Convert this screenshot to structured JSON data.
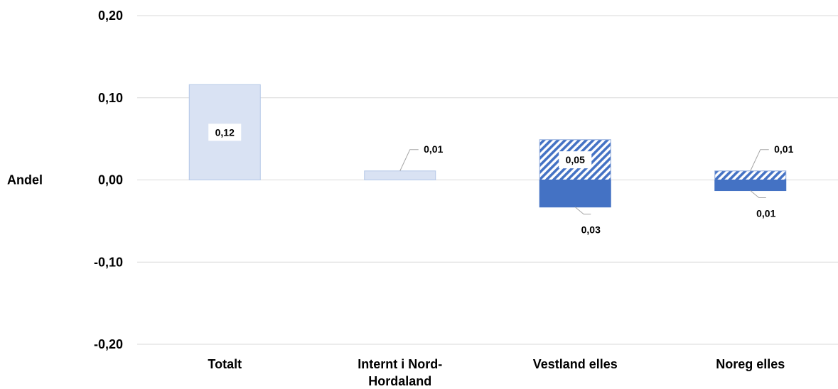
{
  "chart_data": {
    "type": "bar",
    "stacked": true,
    "ylabel": "Andel",
    "ylim": [
      -0.2,
      0.2
    ],
    "yticks": [
      0.2,
      0.1,
      0.0,
      -0.1,
      -0.2
    ],
    "ytick_labels": [
      "0,20",
      "0,10",
      "0,00",
      "-0,10",
      "-0,20"
    ],
    "grid": true,
    "legend": false,
    "categories": [
      [
        "Totalt"
      ],
      [
        "Internt i Nord-",
        "Hordaland"
      ],
      [
        "Vestland elles"
      ],
      [
        "Noreg elles"
      ]
    ],
    "series": [
      {
        "style": "light",
        "color": "#d9e2f3",
        "values": [
          0.116,
          0.011,
          null,
          null
        ],
        "labels": [
          "0,12",
          "0,01",
          "",
          ""
        ]
      },
      {
        "style": "hatched",
        "color": "#4472c4",
        "values": [
          null,
          null,
          0.049,
          0.011
        ],
        "labels": [
          "",
          "",
          "0,05",
          "0,01"
        ]
      },
      {
        "style": "solid",
        "color": "#4472c4",
        "values": [
          null,
          null,
          -0.033,
          -0.013
        ],
        "labels": [
          "",
          "",
          "0,03",
          "0,01"
        ]
      }
    ]
  }
}
